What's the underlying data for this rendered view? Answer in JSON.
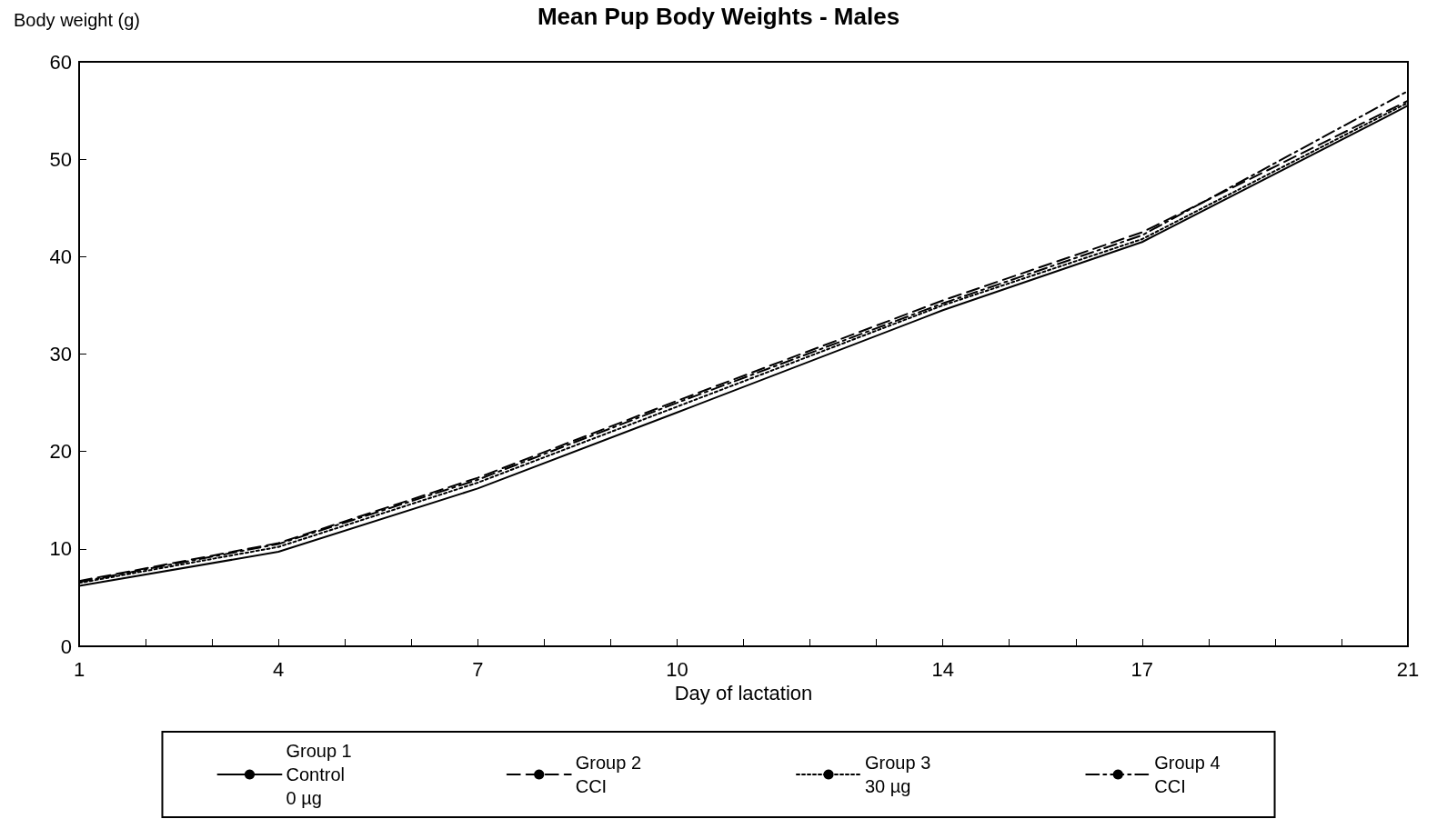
{
  "chart_data": {
    "type": "line",
    "title": "Mean Pup Body Weights - Males",
    "ylabel": "Body weight (g)",
    "xlabel": "Day of lactation",
    "x": [
      1,
      4,
      7,
      10,
      14,
      17,
      21
    ],
    "series": [
      {
        "name": "Group 1\nControl\n0 µg",
        "color": "#000000",
        "line_style": "solid",
        "values": [
          6.2,
          9.7,
          16.2,
          24.0,
          34.5,
          41.5,
          55.5
        ]
      },
      {
        "name": "Group 2\nCCI",
        "color": "#000000",
        "line_style": "dashed",
        "values": [
          6.7,
          10.6,
          17.3,
          25.2,
          35.5,
          42.5,
          56.0
        ]
      },
      {
        "name": "Group 3\n30 µg",
        "color": "#000000",
        "line_style": "dotted",
        "values": [
          6.5,
          10.2,
          16.8,
          24.6,
          35.0,
          41.8,
          55.8
        ]
      },
      {
        "name": "Group 4\nCCI",
        "color": "#000000",
        "line_style": "dashdot",
        "values": [
          6.6,
          10.5,
          17.1,
          25.0,
          35.2,
          42.2,
          57.0
        ]
      }
    ],
    "xlim": [
      1,
      21
    ],
    "xticks": [
      1,
      {
        "value": 2,
        "label": null
      },
      {
        "value": 3,
        "label": null
      },
      4,
      {
        "value": 5,
        "label": null
      },
      {
        "value": 6,
        "label": null
      },
      7,
      {
        "value": 8,
        "label": null
      },
      {
        "value": 9,
        "label": null
      },
      10,
      {
        "value": 11,
        "label": null
      },
      {
        "value": 12,
        "label": null
      },
      {
        "value": 13,
        "label": null
      },
      14,
      {
        "value": 15,
        "label": null
      },
      {
        "value": 16,
        "label": null
      },
      17,
      {
        "value": 18,
        "label": null
      },
      {
        "value": 19,
        "label": null
      },
      {
        "value": 20,
        "label": null
      },
      21
    ],
    "ylim": [
      0,
      60
    ],
    "yticks": [
      0,
      10,
      20,
      30,
      40,
      50,
      60
    ],
    "grid": false,
    "legend": "bottom",
    "marker": "none"
  }
}
